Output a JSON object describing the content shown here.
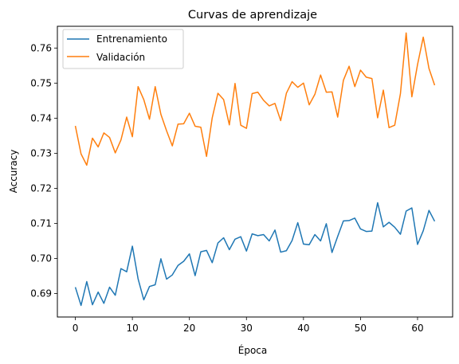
{
  "chart_data": {
    "type": "line",
    "title": "Curvas de aprendizaje",
    "xlabel": "Época",
    "ylabel": "Accuracy",
    "xlim": [
      -3.15,
      66.15
    ],
    "ylim": [
      0.6833,
      0.7662
    ],
    "xticks": [
      0,
      10,
      20,
      30,
      40,
      50,
      60
    ],
    "yticks": [
      0.69,
      0.7,
      0.71,
      0.72,
      0.73,
      0.74,
      0.75,
      0.76
    ],
    "grid": false,
    "legend_position": "top-left",
    "series": [
      {
        "name": "Entrenamiento",
        "color": "#1f77b4",
        "x": [
          0,
          1,
          2,
          3,
          4,
          5,
          6,
          7,
          8,
          9,
          10,
          11,
          12,
          13,
          14,
          15,
          16,
          17,
          18,
          19,
          20,
          21,
          22,
          23,
          24,
          25,
          26,
          27,
          28,
          29,
          30,
          31,
          32,
          33,
          34,
          35,
          36,
          37,
          38,
          39,
          40,
          41,
          42,
          43,
          44,
          45,
          46,
          47,
          48,
          49,
          50,
          51,
          52,
          53,
          54,
          55,
          56,
          57,
          58,
          59,
          60,
          61,
          62,
          63
        ],
        "values": [
          0.6918,
          0.6866,
          0.6934,
          0.6868,
          0.6904,
          0.6872,
          0.6918,
          0.6895,
          0.6971,
          0.6962,
          0.7035,
          0.6942,
          0.6882,
          0.692,
          0.6925,
          0.6999,
          0.6941,
          0.6953,
          0.698,
          0.6992,
          0.7013,
          0.6951,
          0.7019,
          0.7023,
          0.6988,
          0.7044,
          0.7059,
          0.7025,
          0.7055,
          0.7062,
          0.7021,
          0.707,
          0.7065,
          0.7068,
          0.705,
          0.7081,
          0.7018,
          0.7022,
          0.7051,
          0.7102,
          0.7041,
          0.7039,
          0.7068,
          0.705,
          0.7099,
          0.7017,
          0.7063,
          0.7107,
          0.7108,
          0.7115,
          0.7084,
          0.7077,
          0.7078,
          0.7159,
          0.709,
          0.7103,
          0.7089,
          0.7069,
          0.7135,
          0.7144,
          0.704,
          0.7079,
          0.7137,
          0.7106
        ]
      },
      {
        "name": "Validación",
        "color": "#ff7f0e",
        "x": [
          0,
          1,
          2,
          3,
          4,
          5,
          6,
          7,
          8,
          9,
          10,
          11,
          12,
          13,
          14,
          15,
          16,
          17,
          18,
          19,
          20,
          21,
          22,
          23,
          24,
          25,
          26,
          27,
          28,
          29,
          30,
          31,
          32,
          33,
          34,
          35,
          36,
          37,
          38,
          39,
          40,
          41,
          42,
          43,
          44,
          45,
          46,
          47,
          48,
          49,
          50,
          51,
          52,
          53,
          54,
          55,
          56,
          57,
          58,
          59,
          60,
          61,
          62,
          63
        ],
        "values": [
          0.7378,
          0.7298,
          0.7266,
          0.7343,
          0.7318,
          0.7358,
          0.7345,
          0.7301,
          0.7338,
          0.7403,
          0.7347,
          0.749,
          0.7453,
          0.7397,
          0.749,
          0.7411,
          0.7364,
          0.7321,
          0.7383,
          0.7384,
          0.7414,
          0.7377,
          0.7374,
          0.7291,
          0.7401,
          0.7471,
          0.7453,
          0.7381,
          0.7499,
          0.738,
          0.7371,
          0.747,
          0.7474,
          0.7451,
          0.7435,
          0.7442,
          0.7393,
          0.7471,
          0.7504,
          0.7488,
          0.75,
          0.7438,
          0.7468,
          0.7523,
          0.7474,
          0.7475,
          0.7403,
          0.7508,
          0.7548,
          0.749,
          0.7537,
          0.7517,
          0.7513,
          0.7401,
          0.748,
          0.7373,
          0.738,
          0.747,
          0.7643,
          0.7461,
          0.7553,
          0.7631,
          0.7542,
          0.7494
        ]
      }
    ]
  }
}
